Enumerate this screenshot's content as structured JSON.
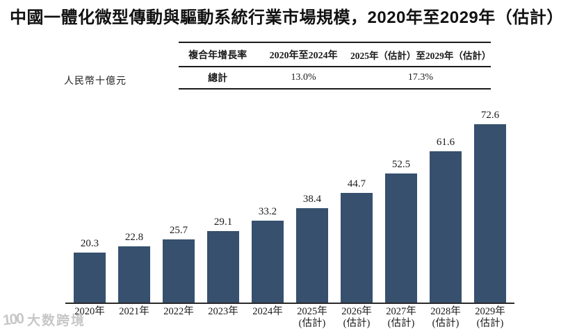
{
  "title": "中國一體化微型傳動與驅動系統行業市場規模，2020年至2029年（估計）",
  "unit_label": "人民幣十億元",
  "cagr_table": {
    "col_headers": [
      "複合年增長率",
      "2020年至2024年",
      "2025年（估計）至2029年（估計）"
    ],
    "row_label": "總計",
    "cagr_2020_2024": "13.0%",
    "cagr_2025_2029": "17.3%"
  },
  "chart_data": {
    "type": "bar",
    "title": "中國一體化微型傳動與驅動系統行業市場規模，2020年至2029年（估計）",
    "ylabel": "人民幣十億元",
    "ylim": [
      0,
      80
    ],
    "grid": false,
    "value_labels_shown": true,
    "bar_color": "#36506E",
    "categories": [
      {
        "label": "2020年",
        "sublabel": ""
      },
      {
        "label": "2021年",
        "sublabel": ""
      },
      {
        "label": "2022年",
        "sublabel": ""
      },
      {
        "label": "2023年",
        "sublabel": ""
      },
      {
        "label": "2024年",
        "sublabel": ""
      },
      {
        "label": "2025年",
        "sublabel": "(估計)"
      },
      {
        "label": "2026年",
        "sublabel": "(估計)"
      },
      {
        "label": "2027年",
        "sublabel": "(估計)"
      },
      {
        "label": "2028年",
        "sublabel": "(估計)"
      },
      {
        "label": "2029年",
        "sublabel": "(估計)"
      }
    ],
    "values": [
      20.3,
      22.8,
      25.7,
      29.1,
      33.2,
      38.4,
      44.7,
      52.5,
      61.6,
      72.6
    ]
  },
  "watermark": {
    "logo": "100",
    "text": "大数跨境"
  }
}
